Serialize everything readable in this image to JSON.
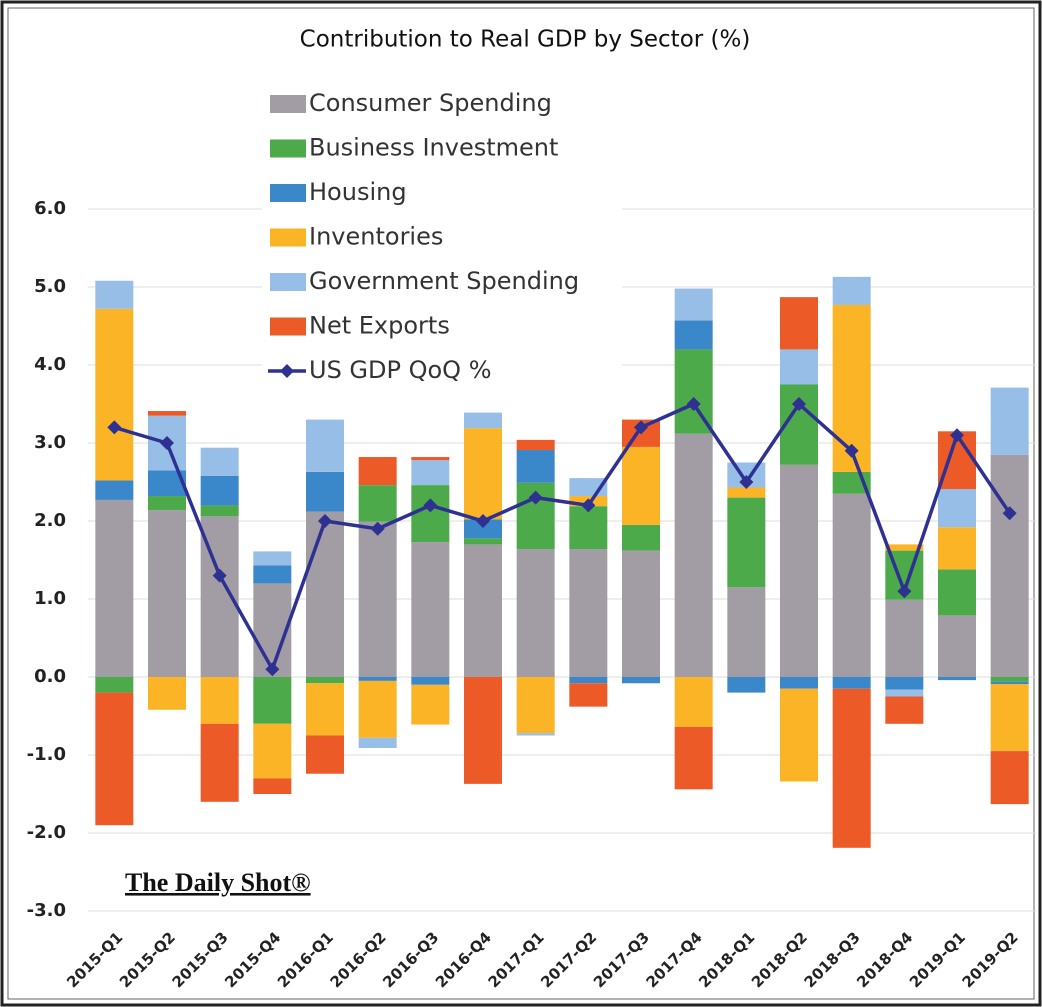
{
  "chart_data": {
    "type": "stacked_bar",
    "title": "Contribution to Real GDP by Sector (%)",
    "watermark": "The Daily Shot®",
    "categories": [
      "2015-Q1",
      "2015-Q2",
      "2015-Q3",
      "2015-Q4",
      "2016-Q1",
      "2016-Q2",
      "2016-Q3",
      "2016-Q4",
      "2017-Q1",
      "2017-Q2",
      "2017-Q3",
      "2017-Q4",
      "2018-Q1",
      "2018-Q2",
      "2018-Q3",
      "2018-Q4",
      "2019-Q1",
      "2019-Q2"
    ],
    "series": [
      {
        "name": "Consumer Spending",
        "color": "#a29ca5",
        "type": "bar",
        "values": [
          2.27,
          2.14,
          2.06,
          1.2,
          2.12,
          1.99,
          1.73,
          1.7,
          1.64,
          1.64,
          1.62,
          3.12,
          1.15,
          2.72,
          2.35,
          0.99,
          0.79,
          2.85
        ]
      },
      {
        "name": "Business Investment",
        "color": "#4caa4a",
        "type": "bar",
        "values": [
          -0.2,
          0.18,
          0.14,
          -0.6,
          -0.08,
          0.47,
          0.73,
          0.08,
          0.85,
          0.55,
          0.33,
          1.08,
          1.15,
          1.03,
          0.28,
          0.63,
          0.59,
          -0.06
        ]
      },
      {
        "name": "Housing",
        "color": "#3a87c9",
        "type": "bar",
        "values": [
          0.25,
          0.33,
          0.38,
          0.23,
          0.51,
          -0.05,
          -0.1,
          0.24,
          0.42,
          -0.08,
          -0.08,
          0.37,
          -0.2,
          -0.15,
          -0.15,
          -0.16,
          -0.04,
          -0.03
        ]
      },
      {
        "name": "Inventories",
        "color": "#fbb425",
        "type": "bar",
        "values": [
          2.2,
          -0.42,
          -0.6,
          -0.7,
          -0.67,
          -0.73,
          -0.51,
          1.17,
          -0.72,
          0.13,
          1.0,
          -0.64,
          0.13,
          -1.19,
          2.14,
          0.08,
          0.54,
          -0.86
        ]
      },
      {
        "name": "Government Spending",
        "color": "#97bee6",
        "type": "bar",
        "values": [
          0.36,
          0.7,
          0.36,
          0.18,
          0.67,
          -0.13,
          0.32,
          0.2,
          -0.03,
          0.23,
          0.0,
          0.41,
          0.32,
          0.45,
          0.36,
          -0.09,
          0.49,
          0.86
        ]
      },
      {
        "name": "Net Exports",
        "color": "#ec5a28",
        "type": "bar",
        "values": [
          -1.7,
          0.06,
          -1.0,
          -0.2,
          -0.49,
          0.36,
          0.04,
          -1.37,
          0.13,
          -0.3,
          0.35,
          -0.8,
          0.0,
          0.67,
          -2.04,
          -0.35,
          0.74,
          -0.68
        ]
      },
      {
        "name": "US GDP QoQ %",
        "color": "#2e3192",
        "type": "line",
        "values": [
          3.2,
          3.0,
          1.3,
          0.1,
          2.0,
          1.9,
          2.2,
          2.0,
          2.3,
          2.2,
          3.2,
          3.5,
          2.5,
          3.5,
          2.9,
          1.1,
          3.1,
          2.1
        ]
      }
    ],
    "ylim": [
      -3,
      6
    ],
    "yticks": [
      {
        "value": -3,
        "label": "-3.0"
      },
      {
        "value": -2,
        "label": "-2.0"
      },
      {
        "value": -1,
        "label": "-1.0"
      },
      {
        "value": 0,
        "label": "0.0"
      },
      {
        "value": 1,
        "label": "1.0"
      },
      {
        "value": 2,
        "label": "2.0"
      },
      {
        "value": 3,
        "label": "3.0"
      },
      {
        "value": 4,
        "label": "4.0"
      },
      {
        "value": 5,
        "label": "5.0"
      },
      {
        "value": 6,
        "label": "6.0"
      }
    ],
    "grid": true
  }
}
